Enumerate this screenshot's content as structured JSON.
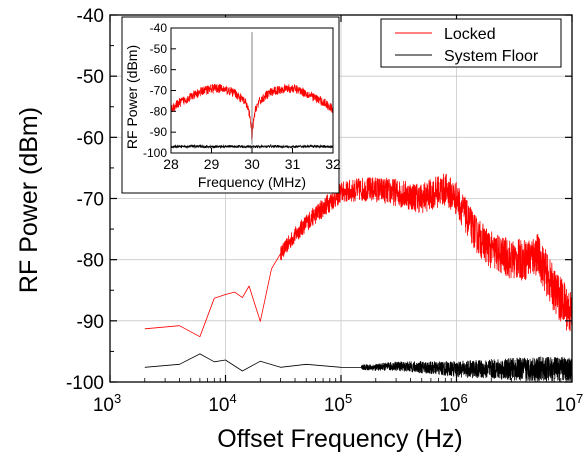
{
  "chart_data": [
    {
      "type": "line",
      "xlabel": "Offset Frequency (Hz)",
      "ylabel": "RF Power (dBm)",
      "x_scale": "log",
      "xlim": [
        1000,
        10000000
      ],
      "ylim": [
        -100,
        -40
      ],
      "x_ticks": [
        {
          "value": 1000,
          "base": "10",
          "exp": "3"
        },
        {
          "value": 10000,
          "base": "10",
          "exp": "4"
        },
        {
          "value": 100000,
          "base": "10",
          "exp": "5"
        },
        {
          "value": 1000000,
          "base": "10",
          "exp": "6"
        },
        {
          "value": 10000000,
          "base": "10",
          "exp": "7"
        }
      ],
      "y_ticks": [
        -100,
        -90,
        -80,
        -70,
        -60,
        -50,
        -40
      ],
      "y_tick_labels": [
        "-100",
        "-90",
        "-80",
        "-70",
        "-60",
        "-50",
        "-40"
      ],
      "grid": true,
      "legend_position": "top-right",
      "series": [
        {
          "name": "Locked",
          "color": "#ff0000",
          "x": [
            2000,
            4000,
            6000,
            8000,
            10000,
            12000,
            14000,
            16000,
            20000,
            25000,
            30000,
            40000,
            50000,
            70000,
            100000,
            150000,
            200000,
            300000,
            500000,
            700000,
            800000,
            1000000,
            1300000,
            1500000,
            2000000,
            3000000,
            4000000,
            5000000,
            7000000,
            10000000
          ],
          "y": [
            -91.3,
            -90.8,
            -92.6,
            -86.3,
            -85.7,
            -85.3,
            -86.2,
            -84.3,
            -90.1,
            -81.5,
            -79,
            -76,
            -74,
            -71.5,
            -69,
            -68.5,
            -68.5,
            -69,
            -70,
            -68.8,
            -68.5,
            -70,
            -74,
            -76,
            -78.5,
            -80,
            -80,
            -79,
            -85,
            -89
          ]
        },
        {
          "name": "System Floor",
          "color": "#000000",
          "x": [
            2000,
            4000,
            6000,
            8000,
            10000,
            14000,
            20000,
            30000,
            50000,
            100000,
            200000,
            300000,
            500000,
            1000000,
            2000000,
            5000000,
            10000000
          ],
          "y": [
            -97.6,
            -97.1,
            -95.4,
            -96.7,
            -96.4,
            -98.2,
            -96.6,
            -97.6,
            -97.1,
            -97.6,
            -97.6,
            -97.4,
            -97.6,
            -97.9,
            -97.9,
            -97.9,
            -97.9
          ]
        }
      ]
    },
    {
      "type": "line",
      "xlabel": "Frequency (MHz)",
      "ylabel": "RF Power (dBm)",
      "xlim": [
        28,
        32
      ],
      "ylim": [
        -100,
        -40
      ],
      "x_ticks": [
        28,
        29,
        30,
        31,
        32
      ],
      "x_tick_labels": [
        "28",
        "29",
        "30",
        "31",
        "32"
      ],
      "y_ticks": [
        -100,
        -90,
        -80,
        -70,
        -60,
        -50,
        -40
      ],
      "y_tick_labels": [
        "-100",
        "-90",
        "-80",
        "-70",
        "-60",
        "-50",
        "-40"
      ],
      "series": [
        {
          "color": "#ff0000",
          "x": [
            28,
            28.2,
            28.4,
            28.6,
            28.8,
            29,
            29.2,
            29.4,
            29.6,
            29.8,
            29.9,
            29.95,
            29.98,
            30,
            30.02,
            30.05,
            30.1,
            30.2,
            30.4,
            30.6,
            30.8,
            31,
            31.2,
            31.4,
            31.6,
            31.8,
            32
          ],
          "y": [
            -79,
            -76,
            -74,
            -72,
            -70,
            -69,
            -69,
            -70,
            -71.5,
            -75,
            -78,
            -83,
            -88,
            -95,
            -88,
            -83,
            -78,
            -75,
            -71.5,
            -70,
            -69,
            -69,
            -70,
            -72,
            -74,
            -76,
            -79
          ]
        },
        {
          "color": "#000000",
          "x": [
            28,
            28.5,
            29,
            29.5,
            30,
            30.5,
            31,
            31.5,
            32
          ],
          "y": [
            -97,
            -96.8,
            -97,
            -96.8,
            -97,
            -96.8,
            -97,
            -96.8,
            -97
          ]
        }
      ]
    }
  ]
}
